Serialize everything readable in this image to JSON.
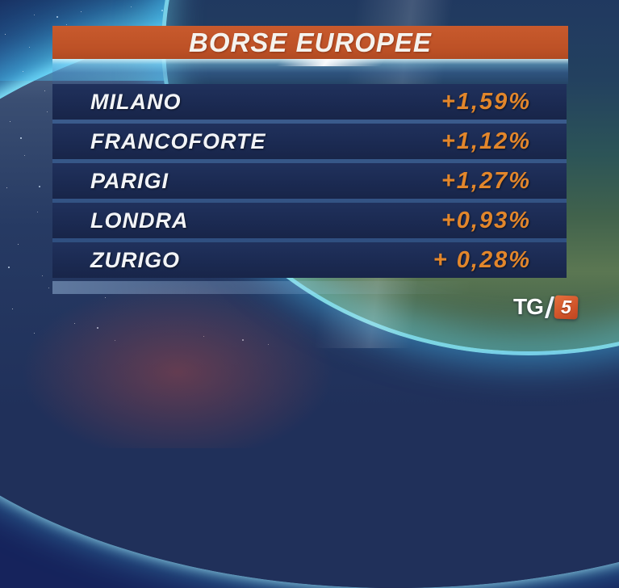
{
  "header": {
    "title": "BORSE EUROPEE"
  },
  "rows": [
    {
      "city": "MILANO",
      "value": "+1,59%"
    },
    {
      "city": "FRANCOFORTE",
      "value": "+1,12%"
    },
    {
      "city": "PARIGI",
      "value": "+1,27%"
    },
    {
      "city": "LONDRA",
      "value": "+0,93%"
    },
    {
      "city": "ZURIGO",
      "value": "+ 0,28%"
    }
  ],
  "logo": {
    "network": "TG",
    "channel": "5"
  },
  "colors": {
    "banner_orange": "#bd5126",
    "value_orange": "#e2862b",
    "row_navy": "#1b2a52",
    "city_white": "#f2f4f7",
    "logo_box_orange": "#d1552b"
  },
  "chart_data": {
    "type": "table",
    "title": "BORSE EUROPEE",
    "categories": [
      "MILANO",
      "FRANCOFORTE",
      "PARIGI",
      "LONDRA",
      "ZURIGO"
    ],
    "values": [
      1.59,
      1.12,
      1.27,
      0.93,
      0.28
    ],
    "value_labels": [
      "+1,59%",
      "+1,12%",
      "+1,27%",
      "+0,93%",
      "+ 0,28%"
    ],
    "unit": "percent change",
    "legend_position": "none",
    "grid": false
  }
}
